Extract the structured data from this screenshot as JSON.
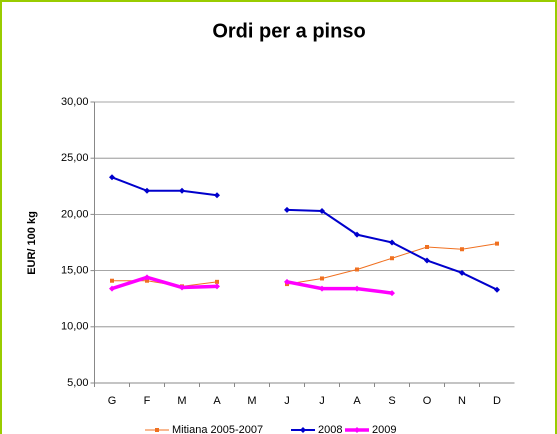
{
  "chart_data": {
    "type": "line",
    "title": "Ordi per a pinso",
    "y_label": "EUR/ 100 kg",
    "categories": [
      "G",
      "F",
      "M",
      "A",
      "M",
      "J",
      "J",
      "A",
      "S",
      "O",
      "N",
      "D"
    ],
    "series": [
      {
        "name": "Mitiana 2005-2007",
        "color": "#f07020",
        "marker": "square",
        "width": 1,
        "values": [
          14.1,
          14.1,
          13.6,
          14.0,
          null,
          13.8,
          14.3,
          15.1,
          16.1,
          17.1,
          16.9,
          17.4
        ]
      },
      {
        "name": "2008",
        "color": "#0000cc",
        "marker": "diamond",
        "width": 2,
        "values": [
          23.3,
          22.1,
          22.1,
          21.7,
          null,
          20.4,
          20.3,
          18.2,
          17.5,
          15.9,
          14.8,
          13.3
        ]
      },
      {
        "name": "2009",
        "color": "#ff00ff",
        "marker": "diamond",
        "width": 3.5,
        "values": [
          13.4,
          14.4,
          13.5,
          13.6,
          null,
          14.0,
          13.4,
          13.4,
          13.0,
          null,
          null,
          null
        ]
      }
    ],
    "ylim": [
      5,
      30
    ],
    "yticks": [
      {
        "value": 5,
        "label": "5,00"
      },
      {
        "value": 10,
        "label": "10,00"
      },
      {
        "value": 15,
        "label": "15,00"
      },
      {
        "value": 20,
        "label": "20,00"
      },
      {
        "value": 25,
        "label": "25,00"
      },
      {
        "value": 30,
        "label": "30,00"
      }
    ],
    "grid": true,
    "legend": "bottom"
  }
}
